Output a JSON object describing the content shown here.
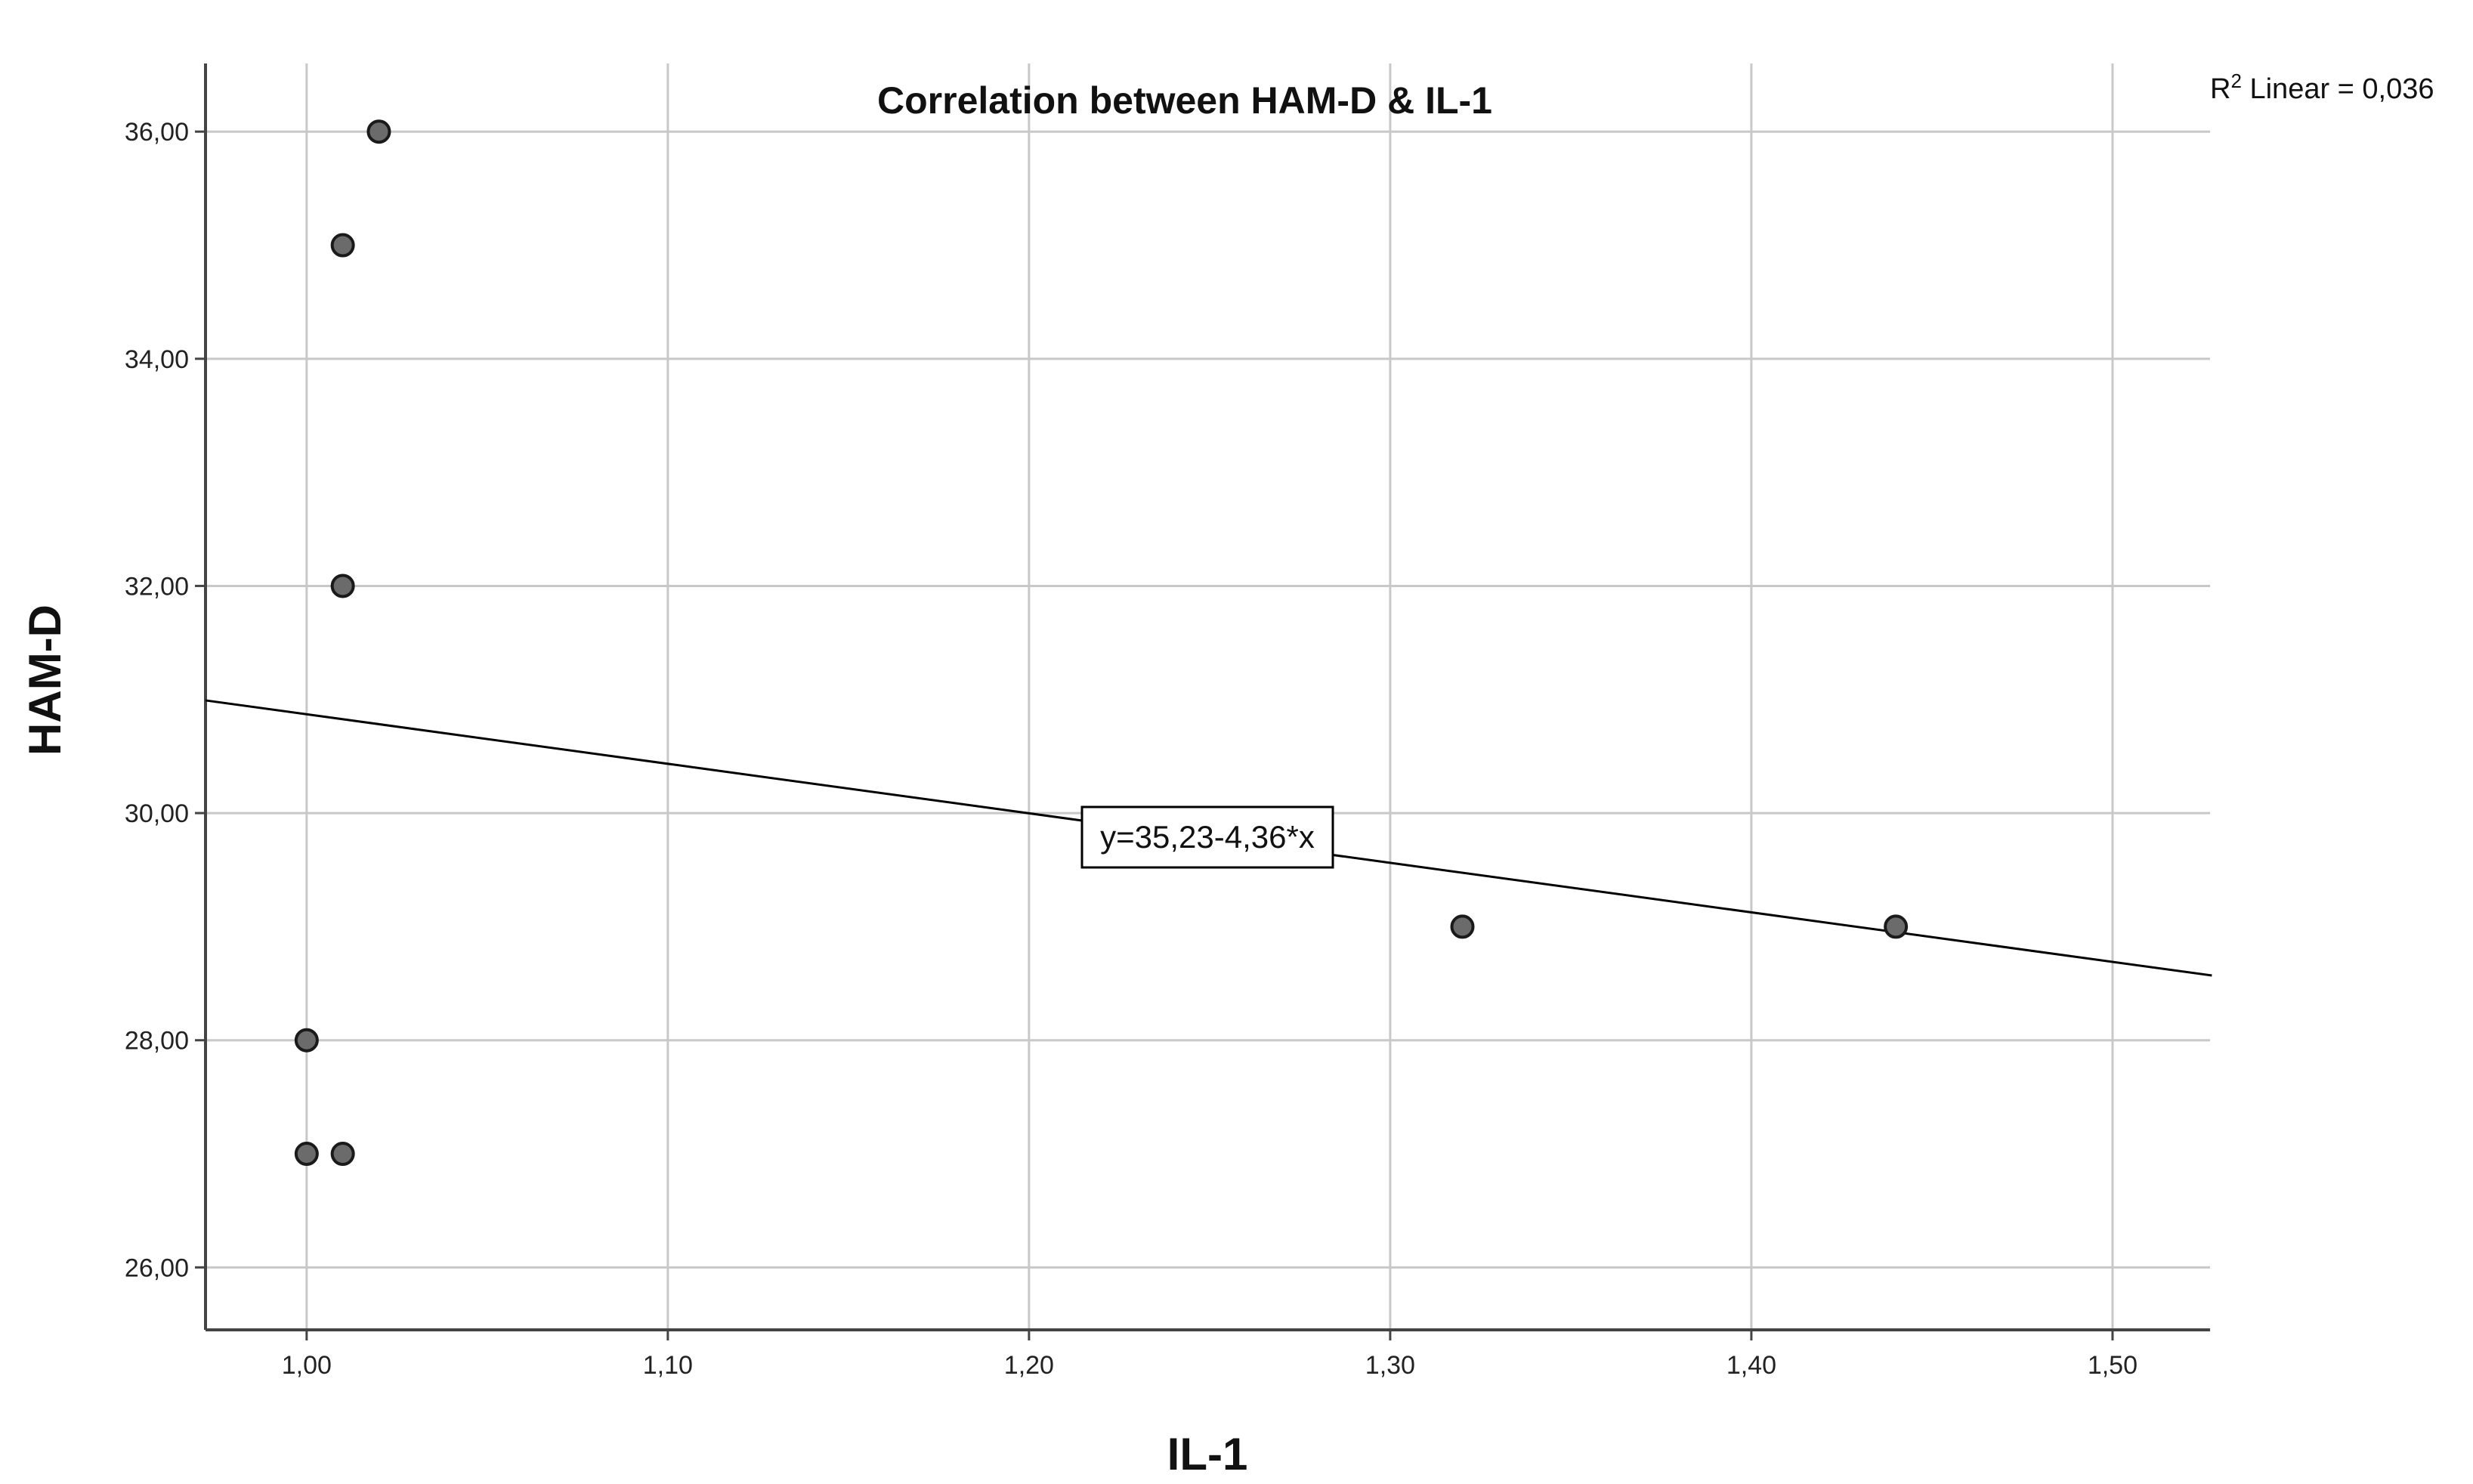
{
  "chart_data": {
    "type": "scatter",
    "title": "Correlation between HAM-D & IL-1",
    "xlabel": "IL-1",
    "ylabel": "HAM-D",
    "xlim": [
      0.972,
      1.527
    ],
    "ylim": [
      25.45,
      36.6
    ],
    "xticks": [
      1.0,
      1.1,
      1.2,
      1.3,
      1.4,
      1.5
    ],
    "yticks": [
      26,
      28,
      30,
      32,
      34,
      36
    ],
    "xtick_labels": [
      "1,00",
      "1,10",
      "1,20",
      "1,30",
      "1,40",
      "1,50"
    ],
    "ytick_labels": [
      "26,00",
      "28,00",
      "30,00",
      "32,00",
      "34,00",
      "36,00"
    ],
    "grid": true,
    "points": [
      {
        "x": 1.02,
        "y": 36
      },
      {
        "x": 1.01,
        "y": 35
      },
      {
        "x": 1.01,
        "y": 32
      },
      {
        "x": 1.0,
        "y": 28
      },
      {
        "x": 1.0,
        "y": 27
      },
      {
        "x": 1.01,
        "y": 27
      },
      {
        "x": 1.32,
        "y": 29
      },
      {
        "x": 1.44,
        "y": 29
      }
    ],
    "fit_line": {
      "intercept": 35.23,
      "slope": -4.36,
      "equation_label": "y=35,23-4,36*x",
      "r2_prefix": "R",
      "r2_sup": "2",
      "r2_text": " Linear = 0,036"
    },
    "colors": {
      "point_fill": "#6b6b6b",
      "point_stroke": "#1a1a1a",
      "grid": "#c8c8c8",
      "axis": "#444444",
      "line": "#000000"
    }
  }
}
